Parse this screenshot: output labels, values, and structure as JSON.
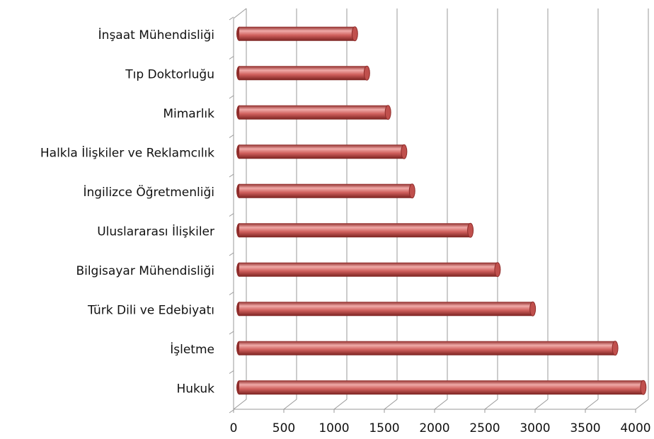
{
  "chart_data": {
    "type": "bar",
    "orientation": "horizontal",
    "style": "3d-cylinder",
    "categories": [
      "İnşaat Mühendisliği",
      "Tıp Doktorluğu",
      "Mimarlık",
      "Halkla İlişkiler ve Reklamcılık",
      "İngilizce Öğretmenliği",
      "Uluslararası İlişkiler",
      "Bilgisayar Mühendisliği",
      "Türk Dili ve Edebiyatı",
      "İşletme",
      "Hukuk"
    ],
    "values": [
      1150,
      1270,
      1480,
      1640,
      1720,
      2300,
      2570,
      2920,
      3740,
      4020
    ],
    "color": "#c0504d",
    "xlim": [
      0,
      4000
    ],
    "xticks": [
      0,
      500,
      1000,
      1500,
      2000,
      2500,
      3000,
      3500,
      4000
    ],
    "grid": true
  }
}
